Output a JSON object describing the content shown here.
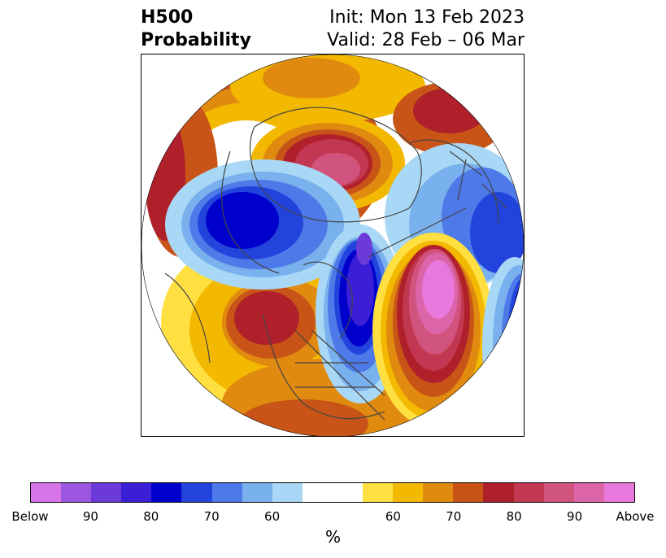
{
  "title": {
    "left_line1": "H500",
    "left_line2": "Probability",
    "right_line1": "Init: Mon 13 Feb 2023",
    "right_line2": "Valid: 28 Feb – 06 Mar"
  },
  "colorbar": {
    "unit": "%",
    "tick_labels": [
      "Below",
      "90",
      "80",
      "70",
      "60",
      "60",
      "70",
      "80",
      "90",
      "Above"
    ],
    "colors": [
      "#d774e8",
      "#9b57e0",
      "#6b3ad8",
      "#3a1fd6",
      "#0000cc",
      "#2244dd",
      "#4d7ae8",
      "#79b1ee",
      "#a8d8f5",
      "#ffffff",
      "#ffe040",
      "#f3b800",
      "#e08a10",
      "#c85418",
      "#b0202a",
      "#c23852",
      "#d0547e",
      "#dc64a8",
      "#e878dc"
    ]
  },
  "map": {
    "projection": "north polar stereographic",
    "anomalies": [
      {
        "label": "above",
        "region": "central Siberia",
        "color": "#d0547e"
      },
      {
        "label": "above",
        "region": "north-east Pacific / Alaska",
        "color": "#b0202a"
      },
      {
        "label": "above",
        "region": "north Atlantic",
        "color": "#e878dc"
      },
      {
        "label": "below",
        "region": "Barents / Kara sea",
        "color": "#0000cc"
      },
      {
        "label": "below",
        "region": "Hudson Bay / Greenland",
        "color": "#3a1fd6"
      },
      {
        "label": "below",
        "region": "Europe",
        "color": "#2244dd"
      }
    ]
  }
}
